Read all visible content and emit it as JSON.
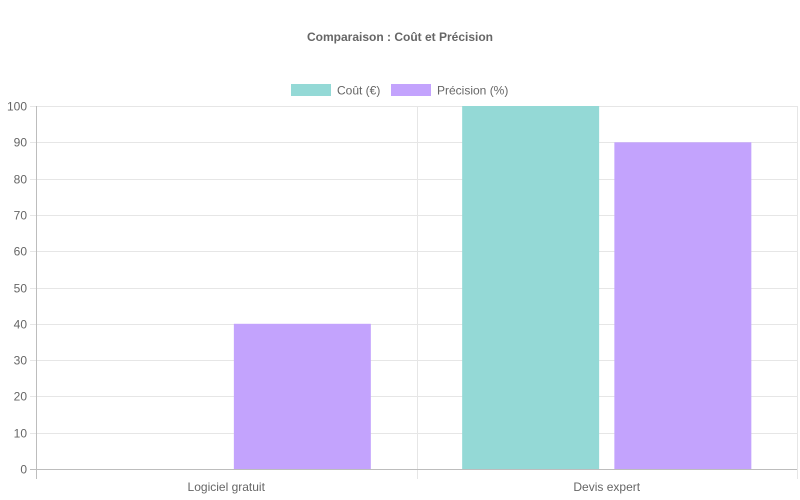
{
  "chart_data": {
    "type": "bar",
    "title": "Comparaison : Coût et Précision",
    "categories": [
      "Logiciel gratuit",
      "Devis expert"
    ],
    "series": [
      {
        "name": "Coût (€)",
        "values": [
          0,
          100
        ],
        "color": "#94d9d6"
      },
      {
        "name": "Précision (%)",
        "values": [
          40,
          90
        ],
        "color": "#c3a3fd"
      }
    ],
    "ylim": [
      0,
      100
    ],
    "yticks": [
      0,
      10,
      20,
      30,
      40,
      50,
      60,
      70,
      80,
      90,
      100
    ],
    "grid": true,
    "legend_position": "top"
  }
}
